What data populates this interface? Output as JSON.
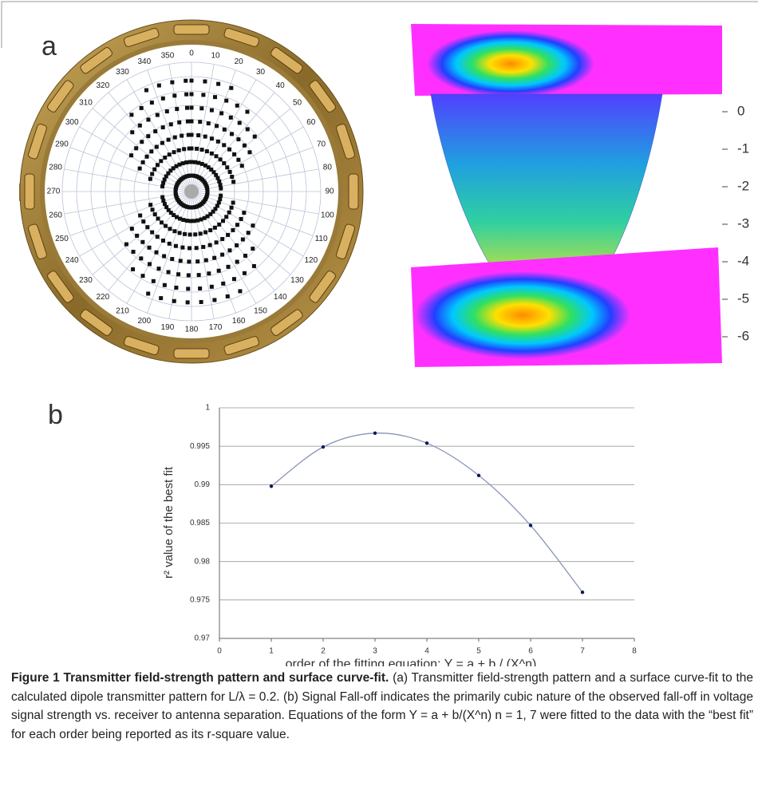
{
  "figure": {
    "panel_a": {
      "label": "a",
      "polar_labels": [
        0,
        10,
        20,
        30,
        40,
        50,
        60,
        70,
        80,
        90,
        100,
        110,
        120,
        130,
        140,
        150,
        160,
        170,
        180,
        190,
        200,
        210,
        220,
        230,
        240,
        250,
        260,
        270,
        280,
        290,
        300,
        310,
        320,
        330,
        340,
        350
      ],
      "surface_ticks": [
        0,
        -1,
        -2,
        -3,
        -4,
        -5,
        -6
      ]
    },
    "panel_b": {
      "label": "b"
    },
    "caption": {
      "title": "Figure 1 Transmitter field-strength pattern and surface curve-fit.",
      "text": "(a) Transmitter field-strength pattern and a surface curve-fit to the calculated dipole transmitter pattern for L/λ = 0.2. (b) Signal Fall-off indicates the primarily cubic nature of the observed fall-off in voltage signal strength vs. receiver to antenna separation. Equations of the form Y = a + b/(X^n) n = 1, 7 were fitted to the data with the “best fit” for each order being reported as its r-square value."
    }
  },
  "chart_data": {
    "type": "line",
    "x_label": "order of the fitting equation:  Y = a + b / (X^n)",
    "y_label": "r² value of the best fit",
    "x": [
      1,
      2,
      3,
      4,
      5,
      6,
      7
    ],
    "series": [
      {
        "color": "#0a1a5c",
        "values": [
          0.9898,
          0.9949,
          0.9967,
          0.9954,
          0.9912,
          0.9847,
          0.976
        ]
      }
    ],
    "xlim": [
      0,
      8
    ],
    "xticks": [
      0,
      1,
      2,
      3,
      4,
      5,
      6,
      7,
      8
    ],
    "ylim": [
      0.97,
      1
    ],
    "yticks": [
      0.97,
      0.975,
      0.98,
      0.985,
      0.99,
      0.995,
      1
    ],
    "grid": true
  }
}
